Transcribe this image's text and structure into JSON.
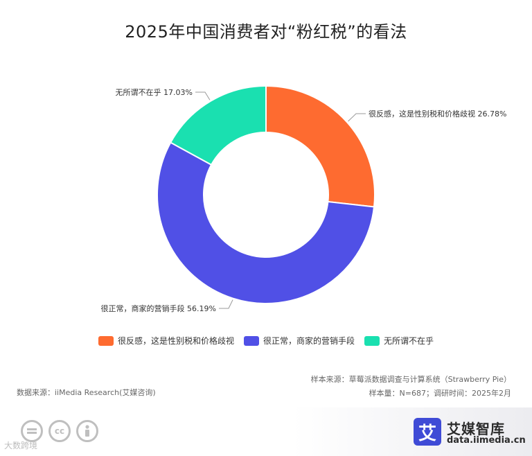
{
  "title": "2025年中国消费者对“粉红税”的看法",
  "chart_data": {
    "type": "pie",
    "donut": true,
    "title": "2025年中国消费者对“粉红税”的看法",
    "series": [
      {
        "name": "很反感，这是性别税和价格歧视",
        "value": 26.78,
        "label": "很反感，这是性别税和价格歧视 26.78%",
        "color": "#fe6b30"
      },
      {
        "name": "很正常，商家的营销手段",
        "value": 56.19,
        "label": "很正常，商家的营销手段 56.19%",
        "color": "#5050e6"
      },
      {
        "name": "无所谓不在乎",
        "value": 17.03,
        "label": "无所谓不在乎 17.03%",
        "color": "#1ae0b0"
      }
    ],
    "legend_position": "bottom"
  },
  "legend": [
    {
      "label": "很反感，这是性别税和价格歧视",
      "color": "#fe6b30"
    },
    {
      "label": "很正常，商家的营销手段",
      "color": "#5050e6"
    },
    {
      "label": "无所谓不在乎",
      "color": "#1ae0b0"
    }
  ],
  "source": {
    "data_source": "数据来源：iiMedia Research(艾媒咨询)",
    "sample_source": "样本来源：草莓派数据调查与计算系统（Strawberry Pie）",
    "sample_size": "样本量：N=687；调研时间：2025年2月"
  },
  "brand": {
    "logo_char": "艾",
    "name": "艾媒智库",
    "url": "data.iimedia.cn",
    "logo_color": "#3f4bd6"
  },
  "watermark": "大数跨境",
  "cc_icons": [
    "equals-icon",
    "cc-icon",
    "person-icon"
  ]
}
